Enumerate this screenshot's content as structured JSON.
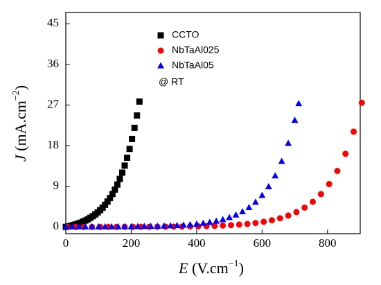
{
  "chart_data": {
    "type": "scatter",
    "x_label": {
      "symbol": "E",
      "unit": " (V.cm",
      "exponent": "−1",
      "close": ")"
    },
    "y_label": {
      "symbol": "J",
      "unit": " (mA.cm",
      "exponent": "−2",
      "close": ")"
    },
    "annotation": "@ RT",
    "xlim": [
      0,
      900
    ],
    "xticks": [
      0,
      200,
      400,
      600,
      800
    ],
    "ylim": [
      -1.5,
      47.5
    ],
    "yticks": [
      0,
      9,
      18,
      27,
      36,
      45
    ],
    "series": [
      {
        "name": "CCTO",
        "color": "#000000",
        "marker": "square",
        "x": [
          0,
          7.5,
          15,
          22.5,
          30,
          37.5,
          45,
          52.5,
          60,
          67.5,
          75,
          82.5,
          90,
          97.5,
          105,
          112.5,
          120,
          127.5,
          135,
          142.5,
          150,
          157.5,
          165,
          172.5,
          180,
          187.5,
          195,
          202.5,
          210,
          217.5,
          225
        ],
        "values": [
          0,
          0.11,
          0.24,
          0.39,
          0.55,
          0.73,
          0.93,
          1.16,
          1.41,
          1.69,
          2.01,
          2.37,
          2.77,
          3.21,
          3.71,
          4.27,
          4.9,
          5.61,
          6.39,
          7.28,
          8.27,
          9.38,
          10.62,
          12.02,
          13.58,
          15.32,
          17.28,
          19.48,
          21.94,
          24.68,
          27.77
        ]
      },
      {
        "name": "NbTaAl025",
        "color": "#ff0000",
        "marker": "circle",
        "x": [
          5,
          30,
          55,
          80,
          105,
          130,
          155,
          180,
          205,
          230,
          255,
          280,
          305,
          330,
          355,
          380,
          405,
          430,
          455,
          480,
          505,
          530,
          555,
          580,
          605,
          630,
          655,
          680,
          705,
          730,
          755,
          780,
          805,
          830,
          855,
          880,
          905
        ],
        "values": [
          0,
          0,
          0,
          0,
          0.01,
          0.01,
          0.01,
          0.01,
          0.02,
          0.02,
          0.03,
          0.04,
          0.05,
          0.06,
          0.08,
          0.1,
          0.13,
          0.18,
          0.23,
          0.3,
          0.39,
          0.51,
          0.66,
          0.87,
          1.13,
          1.47,
          1.92,
          2.51,
          3.28,
          4.27,
          5.57,
          7.27,
          9.49,
          12.4,
          16.2,
          21.1,
          27.5
        ]
      },
      {
        "name": "NbTaAl05",
        "color": "#0000ff",
        "marker": "triangle",
        "x": [
          0,
          20,
          40,
          60,
          80,
          100,
          120,
          140,
          160,
          180,
          200,
          220,
          240,
          260,
          280,
          300,
          320,
          340,
          360,
          380,
          400,
          420,
          440,
          460,
          480,
          500,
          520,
          540,
          560,
          580,
          600,
          620,
          640,
          660,
          680,
          700,
          712
        ],
        "values": [
          0,
          0,
          0.01,
          0.01,
          0.01,
          0.01,
          0.02,
          0.02,
          0.03,
          0.04,
          0.05,
          0.07,
          0.09,
          0.11,
          0.14,
          0.18,
          0.23,
          0.29,
          0.37,
          0.48,
          0.61,
          0.78,
          0.99,
          1.26,
          1.61,
          2.06,
          2.63,
          3.35,
          4.28,
          5.46,
          6.97,
          8.89,
          11.3,
          14.5,
          18.5,
          23.6,
          27.3
        ]
      }
    ]
  }
}
